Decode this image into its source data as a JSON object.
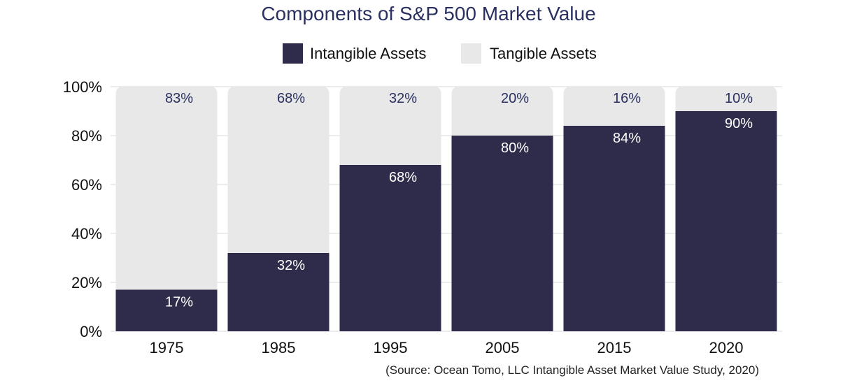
{
  "chart_data": {
    "type": "bar",
    "stacked": true,
    "title": "Components of S&P 500 Market Value",
    "categories": [
      "1975",
      "1985",
      "1995",
      "2005",
      "2015",
      "2020"
    ],
    "series": [
      {
        "name": "Intangible Assets",
        "color": "#2e2c4a",
        "label_color": "#ffffff",
        "values": [
          17,
          32,
          68,
          80,
          84,
          90
        ],
        "labels": [
          "17%",
          "32%",
          "68%",
          "80%",
          "84%",
          "90%"
        ]
      },
      {
        "name": "Tangible Assets",
        "color": "#e8e8e8",
        "label_color": "#2a3160",
        "values": [
          83,
          68,
          32,
          20,
          16,
          10
        ],
        "labels": [
          "83%",
          "68%",
          "32%",
          "20%",
          "16%",
          "10%"
        ]
      }
    ],
    "ylim": [
      0,
      100
    ],
    "yticks": [
      0,
      20,
      40,
      60,
      80,
      100
    ],
    "ytick_labels": [
      "0%",
      "20%",
      "40%",
      "60%",
      "80%",
      "100%"
    ],
    "grid": true,
    "legend_position": "top-center",
    "source": "(Source: Ocean Tomo, LLC Intangible Asset Market Value Study, 2020)"
  }
}
